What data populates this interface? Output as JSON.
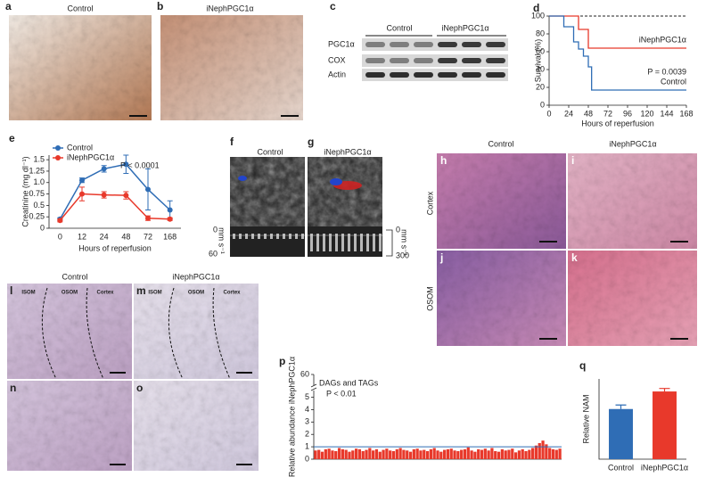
{
  "panels": {
    "a": {
      "letter": "a",
      "title": "Control"
    },
    "b": {
      "letter": "b",
      "title": "iNephPGC1α"
    },
    "c": {
      "letter": "c",
      "groups": [
        "Control",
        "iNephPGC1α"
      ],
      "rows": [
        "PGC1α",
        "COX",
        "Actin"
      ]
    },
    "f": {
      "letter": "f",
      "title": "Control",
      "axis_label": "mm s⁻¹",
      "ticks": [
        "0",
        "60"
      ]
    },
    "g": {
      "letter": "g",
      "title": "iNephPGC1α",
      "axis_label": "mm s⁻¹",
      "ticks": [
        "0",
        "300"
      ]
    },
    "h_k": {
      "letters": [
        "h",
        "i",
        "j",
        "k"
      ],
      "columns": [
        "Control",
        "iNephPGC1α"
      ],
      "rows": [
        "Cortex",
        "OSOM"
      ]
    },
    "l_o": {
      "letters": [
        "l",
        "m",
        "n",
        "o"
      ],
      "columns": [
        "Control",
        "iNephPGC1α"
      ],
      "zones": [
        "ISOM",
        "OSOM",
        "Cortex"
      ]
    }
  },
  "chart_data": [
    {
      "letter": "d",
      "type": "step",
      "ylabel": "Survival (%)",
      "xlabel": "Hours of reperfusion",
      "annotation": "P = 0.0039",
      "xlim": [
        0,
        168
      ],
      "xticks": [
        0,
        24,
        48,
        72,
        96,
        120,
        144,
        168
      ],
      "ylim": [
        0,
        100
      ],
      "yticks": [
        0,
        20,
        40,
        60,
        80,
        100
      ],
      "series": [
        {
          "name": "iNephPGC1α",
          "color": "#e8392b",
          "x": [
            0,
            36,
            48,
            168
          ],
          "values": [
            100,
            85,
            64,
            64
          ]
        },
        {
          "name": "Control",
          "color": "#2f6db5",
          "x": [
            0,
            18,
            30,
            36,
            42,
            48,
            52,
            168
          ],
          "values": [
            100,
            88,
            71,
            63,
            55,
            43,
            17,
            17
          ]
        }
      ]
    },
    {
      "letter": "e",
      "type": "line",
      "ylabel": "Creatinine (mg dl⁻¹)",
      "xlabel": "Hours of reperfusion",
      "annotation": "P < 0.0001",
      "categories": [
        "0",
        "12",
        "24",
        "48",
        "72",
        "168"
      ],
      "ylim": [
        0,
        1.6
      ],
      "yticks": [
        0,
        0.25,
        0.5,
        0.75,
        {
          "value": 1,
          "label": "1.0"
        },
        1.25,
        1.5
      ],
      "series": [
        {
          "name": "Control",
          "color": "#2f6db5",
          "values": [
            0.2,
            1.05,
            1.3,
            1.4,
            0.85,
            0.4
          ],
          "errors": [
            0.03,
            0.05,
            0.07,
            0.2,
            0.45,
            0.2
          ]
        },
        {
          "name": "iNephPGC1α",
          "color": "#e8392b",
          "values": [
            0.17,
            0.75,
            0.73,
            0.72,
            0.22,
            0.2
          ],
          "errors": [
            0.03,
            0.15,
            0.07,
            0.08,
            0.05,
            0.03
          ]
        }
      ]
    },
    {
      "letter": "p",
      "type": "bar",
      "ylabel": "Relative abundance iNephPGC1α",
      "annotation": "DAGs and TAGs",
      "annotation2": "P < 0.01",
      "ylim": [
        0,
        60
      ],
      "axis_break": [
        5.4,
        58
      ],
      "yticks": [
        0,
        1,
        2,
        3,
        4,
        5,
        60
      ],
      "color": "#e8392b",
      "reference_line": 1,
      "reference_color": "#2f6db5",
      "values": [
        0.7,
        0.75,
        0.6,
        0.8,
        0.85,
        0.7,
        0.65,
        0.9,
        0.8,
        0.75,
        0.6,
        0.7,
        0.85,
        0.8,
        0.65,
        0.75,
        0.9,
        0.7,
        0.8,
        0.6,
        0.75,
        0.85,
        0.7,
        0.65,
        0.8,
        0.9,
        0.75,
        0.7,
        0.6,
        0.8,
        0.85,
        0.7,
        0.75,
        0.65,
        0.8,
        0.9,
        0.7,
        0.6,
        0.75,
        0.8,
        0.85,
        0.7,
        0.65,
        0.75,
        0.8,
        0.95,
        0.7,
        0.6,
        0.8,
        0.75,
        0.85,
        0.7,
        0.9,
        0.65,
        0.6,
        0.8,
        0.7,
        0.75,
        0.85,
        0.55,
        0.7,
        0.8,
        0.65,
        0.75,
        0.9,
        1.1,
        1.3,
        1.5,
        1.2,
        0.9,
        0.8,
        0.75,
        0.85
      ]
    },
    {
      "letter": "q",
      "type": "bar",
      "ylabel": "Relative NAM",
      "categories": [
        "Control",
        "iNephPGC1α"
      ],
      "values": [
        1.0,
        1.35
      ],
      "errors": [
        0.08,
        0.06
      ],
      "colors": [
        "#2f6db5",
        "#e8392b"
      ],
      "ylim": [
        0,
        1.6
      ]
    }
  ]
}
